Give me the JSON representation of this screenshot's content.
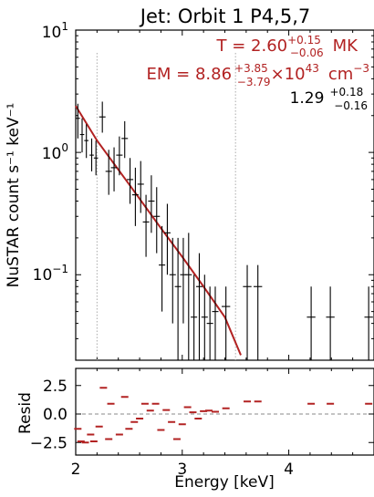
{
  "colors": {
    "model": "#b22222",
    "data": "#000000",
    "zero_line": "#888888",
    "marker": "#aaaaaa"
  },
  "chart_data": [
    {
      "type": "scatter",
      "title": "Jet: Orbit 1 P4,5,7",
      "xlabel": "",
      "ylabel": "NuSTAR count s⁻¹ keV⁻¹",
      "yscale": "log",
      "xlim": [
        2.0,
        4.8
      ],
      "ylim": [
        0.02,
        10
      ],
      "y_ticks": [
        {
          "value": 1,
          "base": "10",
          "exp": "0"
        },
        {
          "value": 0.1,
          "base": "10",
          "exp": "−1"
        }
      ],
      "y_tick_top": {
        "base": "10",
        "exp": "1"
      },
      "fit_window_markers": [
        2.2,
        3.5
      ],
      "annotations": {
        "T": {
          "prefix": "T =  ",
          "value": "2.60",
          "upper": "+0.15",
          "lower": "−0.06",
          "unit": "MK"
        },
        "EM": {
          "prefix": "EM =  ",
          "value": "8.86",
          "upper": "+3.85",
          "lower": "−3.79",
          "times": "×10",
          "exp": "43",
          "unit": "cm",
          "unit_exp": "−3"
        },
        "third": {
          "value": "1.29",
          "upper": "+0.18",
          "lower": "−0.16"
        }
      },
      "model": {
        "x": [
          2.0,
          2.2,
          2.5,
          2.8,
          3.0,
          3.2,
          3.4,
          3.55
        ],
        "y": [
          2.4,
          1.25,
          0.55,
          0.24,
          0.14,
          0.08,
          0.045,
          0.022
        ]
      },
      "points": [
        {
          "x": 2.02,
          "y": 1.9,
          "xerr": 0.02,
          "ylo": 1.3,
          "yhi": 2.5
        },
        {
          "x": 2.06,
          "y": 1.4,
          "xerr": 0.02,
          "ylo": 1.0,
          "yhi": 1.9
        },
        {
          "x": 2.1,
          "y": 1.25,
          "xerr": 0.02,
          "ylo": 0.9,
          "yhi": 1.7
        },
        {
          "x": 2.15,
          "y": 0.95,
          "xerr": 0.02,
          "ylo": 0.7,
          "yhi": 1.3
        },
        {
          "x": 2.19,
          "y": 0.9,
          "xerr": 0.02,
          "ylo": 0.65,
          "yhi": 1.25
        },
        {
          "x": 2.25,
          "y": 1.95,
          "xerr": 0.03,
          "ylo": 1.45,
          "yhi": 2.6
        },
        {
          "x": 2.31,
          "y": 0.7,
          "xerr": 0.03,
          "ylo": 0.45,
          "yhi": 1.05
        },
        {
          "x": 2.36,
          "y": 0.75,
          "xerr": 0.03,
          "ylo": 0.48,
          "yhi": 1.1
        },
        {
          "x": 2.41,
          "y": 0.95,
          "xerr": 0.03,
          "ylo": 0.65,
          "yhi": 1.35
        },
        {
          "x": 2.46,
          "y": 1.3,
          "xerr": 0.03,
          "ylo": 0.9,
          "yhi": 1.8
        },
        {
          "x": 2.51,
          "y": 0.6,
          "xerr": 0.03,
          "ylo": 0.38,
          "yhi": 0.9
        },
        {
          "x": 2.56,
          "y": 0.45,
          "xerr": 0.03,
          "ylo": 0.25,
          "yhi": 0.75
        },
        {
          "x": 2.61,
          "y": 0.55,
          "xerr": 0.03,
          "ylo": 0.32,
          "yhi": 0.85
        },
        {
          "x": 2.66,
          "y": 0.27,
          "xerr": 0.03,
          "ylo": 0.14,
          "yhi": 0.45
        },
        {
          "x": 2.71,
          "y": 0.4,
          "xerr": 0.03,
          "ylo": 0.22,
          "yhi": 0.65
        },
        {
          "x": 2.76,
          "y": 0.3,
          "xerr": 0.03,
          "ylo": 0.15,
          "yhi": 0.52
        },
        {
          "x": 2.81,
          "y": 0.12,
          "xerr": 0.03,
          "ylo": 0.05,
          "yhi": 0.25
        },
        {
          "x": 2.86,
          "y": 0.22,
          "xerr": 0.03,
          "ylo": 0.1,
          "yhi": 0.38
        },
        {
          "x": 2.91,
          "y": 0.1,
          "xerr": 0.03,
          "ylo": 0.04,
          "yhi": 0.2
        },
        {
          "x": 2.96,
          "y": 0.08,
          "xerr": 0.03,
          "ylo": 0.02,
          "yhi": 0.2
        },
        {
          "x": 3.01,
          "y": 0.1,
          "xerr": 0.03,
          "ylo": 0.04,
          "yhi": 0.2
        },
        {
          "x": 3.06,
          "y": 0.1,
          "xerr": 0.03,
          "ylo": 0.02,
          "yhi": 0.22
        },
        {
          "x": 3.11,
          "y": 0.045,
          "xerr": 0.03,
          "ylo": 0.02,
          "yhi": 0.1
        },
        {
          "x": 3.16,
          "y": 0.08,
          "xerr": 0.03,
          "ylo": 0.02,
          "yhi": 0.15
        },
        {
          "x": 3.21,
          "y": 0.045,
          "xerr": 0.03,
          "ylo": 0.02,
          "yhi": 0.1
        },
        {
          "x": 3.26,
          "y": 0.04,
          "xerr": 0.03,
          "ylo": 0.02,
          "yhi": 0.08
        },
        {
          "x": 3.31,
          "y": 0.05,
          "xerr": 0.03,
          "ylo": 0.02,
          "yhi": 0.08
        },
        {
          "x": 3.41,
          "y": 0.055,
          "xerr": 0.04,
          "ylo": 0.02,
          "yhi": 0.08
        },
        {
          "x": 3.61,
          "y": 0.08,
          "xerr": 0.04,
          "ylo": 0.02,
          "yhi": 0.12
        },
        {
          "x": 3.71,
          "y": 0.08,
          "xerr": 0.04,
          "ylo": 0.02,
          "yhi": 0.12
        },
        {
          "x": 4.21,
          "y": 0.045,
          "xerr": 0.04,
          "ylo": 0.02,
          "yhi": 0.08
        },
        {
          "x": 4.39,
          "y": 0.045,
          "xerr": 0.04,
          "ylo": 0.02,
          "yhi": 0.08
        },
        {
          "x": 4.75,
          "y": 0.045,
          "xerr": 0.04,
          "ylo": 0.02,
          "yhi": 0.08
        }
      ]
    },
    {
      "type": "scatter",
      "xlabel": "Energy [keV]",
      "ylabel": "Resid",
      "xlim": [
        2.0,
        4.8
      ],
      "ylim": [
        -3.6,
        4.0
      ],
      "x_ticks": [
        2,
        3,
        4
      ],
      "x_tick_labels": [
        "2",
        "3",
        "4"
      ],
      "y_ticks": [
        2.5,
        0.0,
        -2.5
      ],
      "y_tick_labels": [
        "2.5",
        "0.0",
        "−2.5"
      ],
      "zero_line": 0,
      "residuals": [
        {
          "x": 2.02,
          "y": -1.3
        },
        {
          "x": 2.05,
          "y": -2.4
        },
        {
          "x": 2.09,
          "y": -2.5
        },
        {
          "x": 2.14,
          "y": -1.8
        },
        {
          "x": 2.17,
          "y": -2.4
        },
        {
          "x": 2.22,
          "y": -1.1
        },
        {
          "x": 2.26,
          "y": 2.3
        },
        {
          "x": 2.31,
          "y": -2.2
        },
        {
          "x": 2.33,
          "y": 0.9
        },
        {
          "x": 2.41,
          "y": -1.8
        },
        {
          "x": 2.46,
          "y": 1.5
        },
        {
          "x": 2.5,
          "y": -1.3
        },
        {
          "x": 2.55,
          "y": -0.7
        },
        {
          "x": 2.6,
          "y": -0.4
        },
        {
          "x": 2.65,
          "y": 0.9
        },
        {
          "x": 2.7,
          "y": 0.3
        },
        {
          "x": 2.75,
          "y": 0.9
        },
        {
          "x": 2.8,
          "y": -1.4
        },
        {
          "x": 2.85,
          "y": 0.35
        },
        {
          "x": 2.9,
          "y": -0.7
        },
        {
          "x": 2.95,
          "y": -2.2
        },
        {
          "x": 3.0,
          "y": -0.9
        },
        {
          "x": 3.05,
          "y": 0.6
        },
        {
          "x": 3.1,
          "y": 0.15
        },
        {
          "x": 3.15,
          "y": -0.4
        },
        {
          "x": 3.2,
          "y": 0.25
        },
        {
          "x": 3.25,
          "y": 0.3
        },
        {
          "x": 3.31,
          "y": 0.2
        },
        {
          "x": 3.41,
          "y": 0.5
        },
        {
          "x": 3.61,
          "y": 1.1
        },
        {
          "x": 3.71,
          "y": 1.1
        },
        {
          "x": 4.21,
          "y": 0.9
        },
        {
          "x": 4.39,
          "y": 0.9
        },
        {
          "x": 4.75,
          "y": 0.9
        }
      ]
    }
  ]
}
